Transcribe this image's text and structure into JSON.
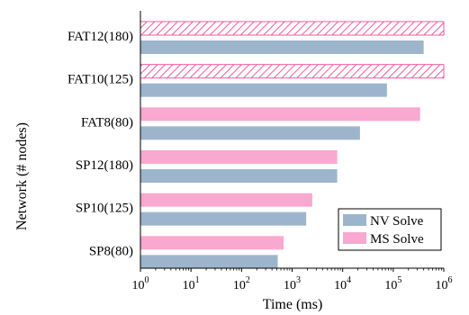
{
  "chart_data": {
    "type": "bar",
    "orientation": "horizontal",
    "xscale": "log",
    "xlim": [
      1,
      1000000
    ],
    "xlabel": "Time (ms)",
    "ylabel": "Network (# nodes)",
    "categories": [
      "FAT12(180)",
      "FAT10(125)",
      "FAT8(80)",
      "SP12(180)",
      "SP10(125)",
      "SP8(80)"
    ],
    "xticks": [
      {
        "value": 1,
        "base": "10",
        "exp": "0"
      },
      {
        "value": 10,
        "base": "10",
        "exp": "1"
      },
      {
        "value": 100,
        "base": "10",
        "exp": "2"
      },
      {
        "value": 1000,
        "base": "10",
        "exp": "3"
      },
      {
        "value": 10000,
        "base": "10",
        "exp": "4"
      },
      {
        "value": 100000,
        "base": "10",
        "exp": "5"
      },
      {
        "value": 1000000,
        "base": "10",
        "exp": "6"
      }
    ],
    "series": [
      {
        "name": "MS Solve",
        "color": "#f9a8d0",
        "values": [
          1000000,
          1000000,
          340000,
          7800,
          2500,
          680
        ],
        "hatched": [
          true,
          true,
          false,
          false,
          false,
          false
        ]
      },
      {
        "name": "NV Solve",
        "color": "#9db5cc",
        "values": [
          400000,
          75000,
          22000,
          7800,
          1900,
          520
        ],
        "hatched": [
          false,
          false,
          false,
          false,
          false,
          false
        ]
      }
    ],
    "legend": {
      "position": "bottom-right",
      "entries": [
        {
          "label": "NV Solve",
          "color": "#9db5cc"
        },
        {
          "label": "MS Solve",
          "color": "#f9a8d0"
        }
      ]
    },
    "grid": false
  }
}
